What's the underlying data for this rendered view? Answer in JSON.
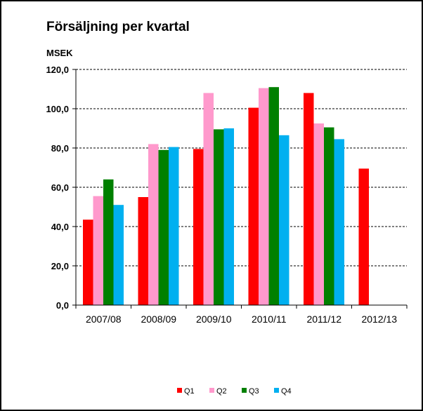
{
  "chart_data": {
    "type": "bar",
    "title": "Försäljning per kvartal",
    "ylabel": "MSEK",
    "xlabel": "",
    "categories": [
      "2007/08",
      "2008/09",
      "2009/10",
      "2010/11",
      "2011/12",
      "2012/13"
    ],
    "series": [
      {
        "name": "Q1",
        "color": "#ff0000",
        "values": [
          43.5,
          55.0,
          79.5,
          100.5,
          108.0,
          69.5
        ]
      },
      {
        "name": "Q2",
        "color": "#ff99cc",
        "values": [
          55.5,
          82.0,
          108.0,
          110.5,
          92.5,
          null
        ]
      },
      {
        "name": "Q3",
        "color": "#008000",
        "values": [
          64.0,
          79.0,
          89.5,
          111.0,
          90.5,
          null
        ]
      },
      {
        "name": "Q4",
        "color": "#00b0f0",
        "values": [
          51.0,
          80.5,
          90.0,
          86.5,
          84.5,
          null
        ]
      }
    ],
    "ylim": [
      0,
      120
    ],
    "yticks": [
      "0,0",
      "20,0",
      "40,0",
      "60,0",
      "80,0",
      "100,0",
      "120,0"
    ],
    "grid": true,
    "legend": "bottom"
  }
}
